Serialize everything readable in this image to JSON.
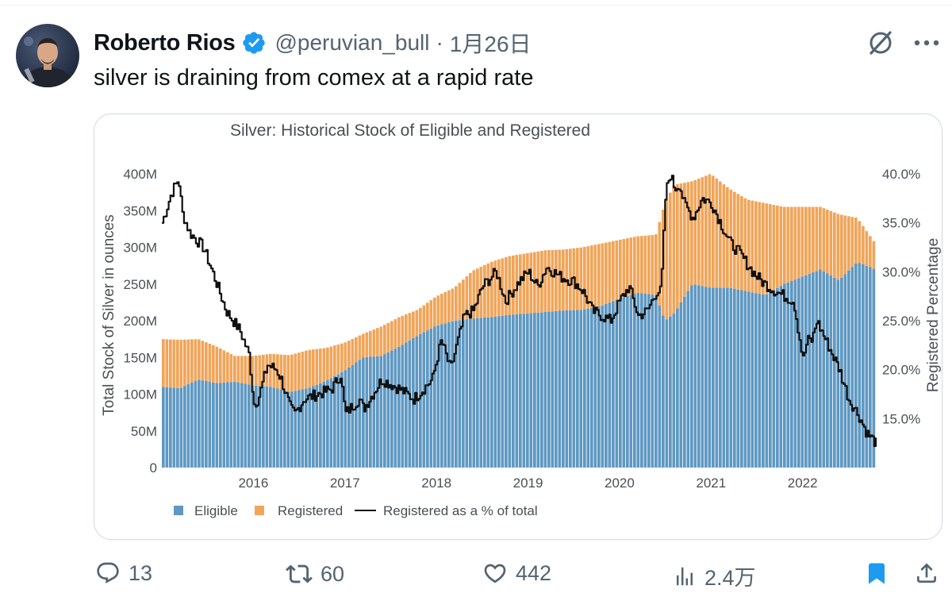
{
  "tweet": {
    "author_name": "Roberto Rios",
    "handle": "@peruvian_bull",
    "separator": "·",
    "date": "1月26日",
    "text": "silver is draining from comex at a rapid rate",
    "verified_color": "#1d9bf0"
  },
  "icons": {
    "avatar": "avatar-photo",
    "verified": "verified-badge-icon",
    "grok": "grok-icon",
    "more": "more-dots-icon",
    "reply": "reply-icon",
    "retweet": "retweet-icon",
    "like": "heart-icon",
    "views": "views-chart-icon",
    "bookmark": "bookmark-icon",
    "share": "share-icon"
  },
  "actions": {
    "replies": "13",
    "retweets": "60",
    "likes": "442",
    "views": "2.4万",
    "bookmark_color": "#1d9bf0",
    "icon_color": "#536471"
  },
  "chart_data": {
    "type": "bar",
    "title": "Silver: Historical Stock of Eligible and Registered",
    "ylabel": "Total Stock of Silver in ounces",
    "y2label": "Registered Percentage",
    "ylim": [
      0,
      400
    ],
    "y2lim": [
      10,
      40
    ],
    "x_range": [
      2015.0,
      2022.8
    ],
    "y_ticks": [
      "0",
      "50M",
      "100M",
      "150M",
      "200M",
      "250M",
      "300M",
      "350M",
      "400M"
    ],
    "y2_ticks": [
      "15.0%",
      "20.0%",
      "25.0%",
      "30.0%",
      "35.0%",
      "40.0%"
    ],
    "x_ticks": [
      "2016",
      "2017",
      "2018",
      "2019",
      "2020",
      "2021",
      "2022"
    ],
    "colors": {
      "eligible": "#5f98c2",
      "registered": "#f0a55a",
      "percent_line": "#111111"
    },
    "legend": [
      "Eligible",
      "Registered",
      "Registered as a % of total"
    ],
    "series": [
      {
        "name": "Eligible",
        "x": [
          2015.0,
          2015.2,
          2015.4,
          2015.6,
          2015.8,
          2016.0,
          2016.2,
          2016.4,
          2016.6,
          2016.8,
          2017.0,
          2017.2,
          2017.4,
          2017.6,
          2017.8,
          2018.0,
          2018.2,
          2018.4,
          2018.6,
          2018.8,
          2019.0,
          2019.2,
          2019.4,
          2019.6,
          2019.8,
          2020.0,
          2020.2,
          2020.4,
          2020.5,
          2020.6,
          2020.8,
          2021.0,
          2021.2,
          2021.4,
          2021.6,
          2021.8,
          2022.0,
          2022.2,
          2022.4,
          2022.6,
          2022.8
        ],
        "values": [
          110,
          108,
          120,
          115,
          117,
          112,
          110,
          103,
          108,
          118,
          132,
          150,
          152,
          165,
          180,
          193,
          200,
          203,
          205,
          208,
          210,
          212,
          214,
          215,
          220,
          230,
          238,
          235,
          200,
          210,
          250,
          245,
          245,
          240,
          235,
          250,
          260,
          270,
          255,
          280,
          270
        ]
      },
      {
        "name": "Registered",
        "x": [
          2015.0,
          2015.2,
          2015.4,
          2015.6,
          2015.8,
          2016.0,
          2016.2,
          2016.4,
          2016.6,
          2016.8,
          2017.0,
          2017.2,
          2017.4,
          2017.6,
          2017.8,
          2018.0,
          2018.2,
          2018.4,
          2018.6,
          2018.8,
          2019.0,
          2019.2,
          2019.4,
          2019.6,
          2019.8,
          2020.0,
          2020.2,
          2020.4,
          2020.5,
          2020.6,
          2020.8,
          2021.0,
          2021.2,
          2021.4,
          2021.6,
          2021.8,
          2022.0,
          2022.2,
          2022.4,
          2022.6,
          2022.8
        ],
        "values": [
          65,
          66,
          55,
          50,
          35,
          40,
          45,
          50,
          52,
          45,
          38,
          32,
          40,
          40,
          35,
          40,
          45,
          65,
          75,
          80,
          82,
          84,
          83,
          85,
          85,
          80,
          77,
          82,
          160,
          175,
          140,
          155,
          135,
          125,
          125,
          105,
          95,
          85,
          90,
          60,
          35
        ]
      },
      {
        "name": "Registered as a % of total",
        "x": [
          2015.0,
          2015.1,
          2015.18,
          2015.22,
          2015.3,
          2015.45,
          2015.55,
          2015.7,
          2015.85,
          2015.95,
          2016.0,
          2016.05,
          2016.15,
          2016.25,
          2016.3,
          2016.4,
          2016.45,
          2016.55,
          2016.7,
          2016.85,
          2016.95,
          2017.0,
          2017.15,
          2017.2,
          2017.3,
          2017.4,
          2017.5,
          2017.6,
          2017.75,
          2017.85,
          2017.95,
          2018.0,
          2018.05,
          2018.15,
          2018.3,
          2018.4,
          2018.5,
          2018.65,
          2018.75,
          2018.9,
          2019.0,
          2019.1,
          2019.2,
          2019.35,
          2019.5,
          2019.6,
          2019.7,
          2019.8,
          2019.9,
          2020.0,
          2020.1,
          2020.2,
          2020.3,
          2020.4,
          2020.45,
          2020.5,
          2020.55,
          2020.6,
          2020.65,
          2020.7,
          2020.8,
          2020.9,
          2021.0,
          2021.1,
          2021.2,
          2021.3,
          2021.45,
          2021.55,
          2021.7,
          2021.8,
          2021.9,
          2022.0,
          2022.05,
          2022.1,
          2022.15,
          2022.25,
          2022.4,
          2022.5,
          2022.6,
          2022.7,
          2022.8
        ],
        "values": [
          35.0,
          38.0,
          39.5,
          36.0,
          34.0,
          32.5,
          30.0,
          26.0,
          24.0,
          21.5,
          16.5,
          17.0,
          20.5,
          20.0,
          19.0,
          16.0,
          15.5,
          17.0,
          17.5,
          18.0,
          19.5,
          15.5,
          17.0,
          16.0,
          17.5,
          19.0,
          18.5,
          18.0,
          17.0,
          18.0,
          19.0,
          21.0,
          23.0,
          20.0,
          25.5,
          26.0,
          28.5,
          30.0,
          27.0,
          29.0,
          30.0,
          28.5,
          30.5,
          29.5,
          29.0,
          28.0,
          26.0,
          25.5,
          25.0,
          27.0,
          28.5,
          25.5,
          26.0,
          28.0,
          28.0,
          38.0,
          40.0,
          38.5,
          39.0,
          37.0,
          35.5,
          37.5,
          37.0,
          35.0,
          33.0,
          32.0,
          30.0,
          29.0,
          28.0,
          27.5,
          27.0,
          21.0,
          23.0,
          23.0,
          25.0,
          23.0,
          20.0,
          17.0,
          15.5,
          13.5,
          12.5
        ]
      }
    ]
  }
}
